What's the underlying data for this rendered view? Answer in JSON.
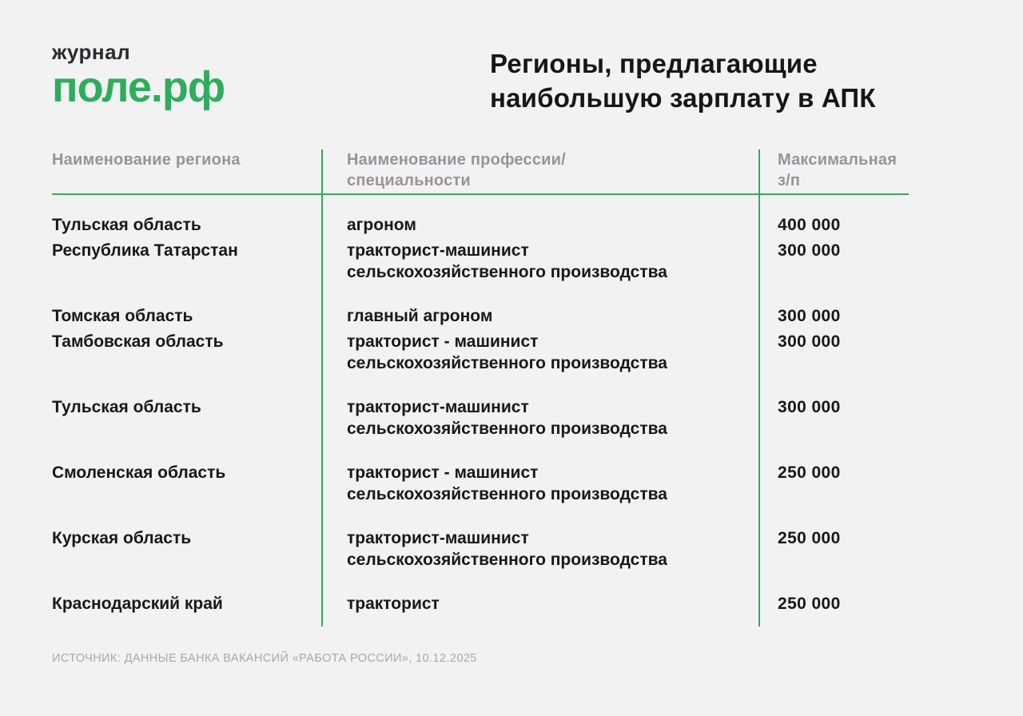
{
  "logo": {
    "tagline": "журнал",
    "name": "поле.рф"
  },
  "title": "Регионы, предлагающие наибольшую зарплату в АПК",
  "table": {
    "headers": [
      "Наименование региона",
      "Наименование профессии/ специальности",
      "Максимальная з/п"
    ],
    "rows": [
      {
        "region": "Тульская область",
        "profession": "агроном",
        "salary": "400 000"
      },
      {
        "region": "Республика Татарстан",
        "profession": "тракторист-машинист сельскохозяйственного производства",
        "salary": "300 000"
      },
      {
        "region": "Томская область",
        "profession": "главный агроном",
        "salary": "300 000"
      },
      {
        "region": "Тамбовская область",
        "profession": "тракторист - машинист сельскохозяйственного производства",
        "salary": "300 000"
      },
      {
        "region": "Тульская область",
        "profession": "тракторист-машинист сельскохозяйственного производства",
        "salary": "300 000"
      },
      {
        "region": "Смоленская область",
        "profession": "тракторист - машинист сельскохозяйственного производства",
        "salary": "250 000"
      },
      {
        "region": "Курская область",
        "profession": "тракторист-машинист сельскохозяйственного производства",
        "salary": "250 000"
      },
      {
        "region": "Краснодарский край",
        "profession": "тракторист",
        "salary": "250 000"
      }
    ]
  },
  "source": "ИСТОЧНИК: ДАННЫЕ БАНКА ВАКАНСИЙ «РАБОТА РОССИИ», 10.12.2025",
  "colors": {
    "background": "#f2f2f3",
    "accent_green": "#2ead5c",
    "line_green": "#35a95f",
    "text_dark": "#18181b",
    "header_gray": "#98939b",
    "source_gray": "#a8a8ab"
  }
}
